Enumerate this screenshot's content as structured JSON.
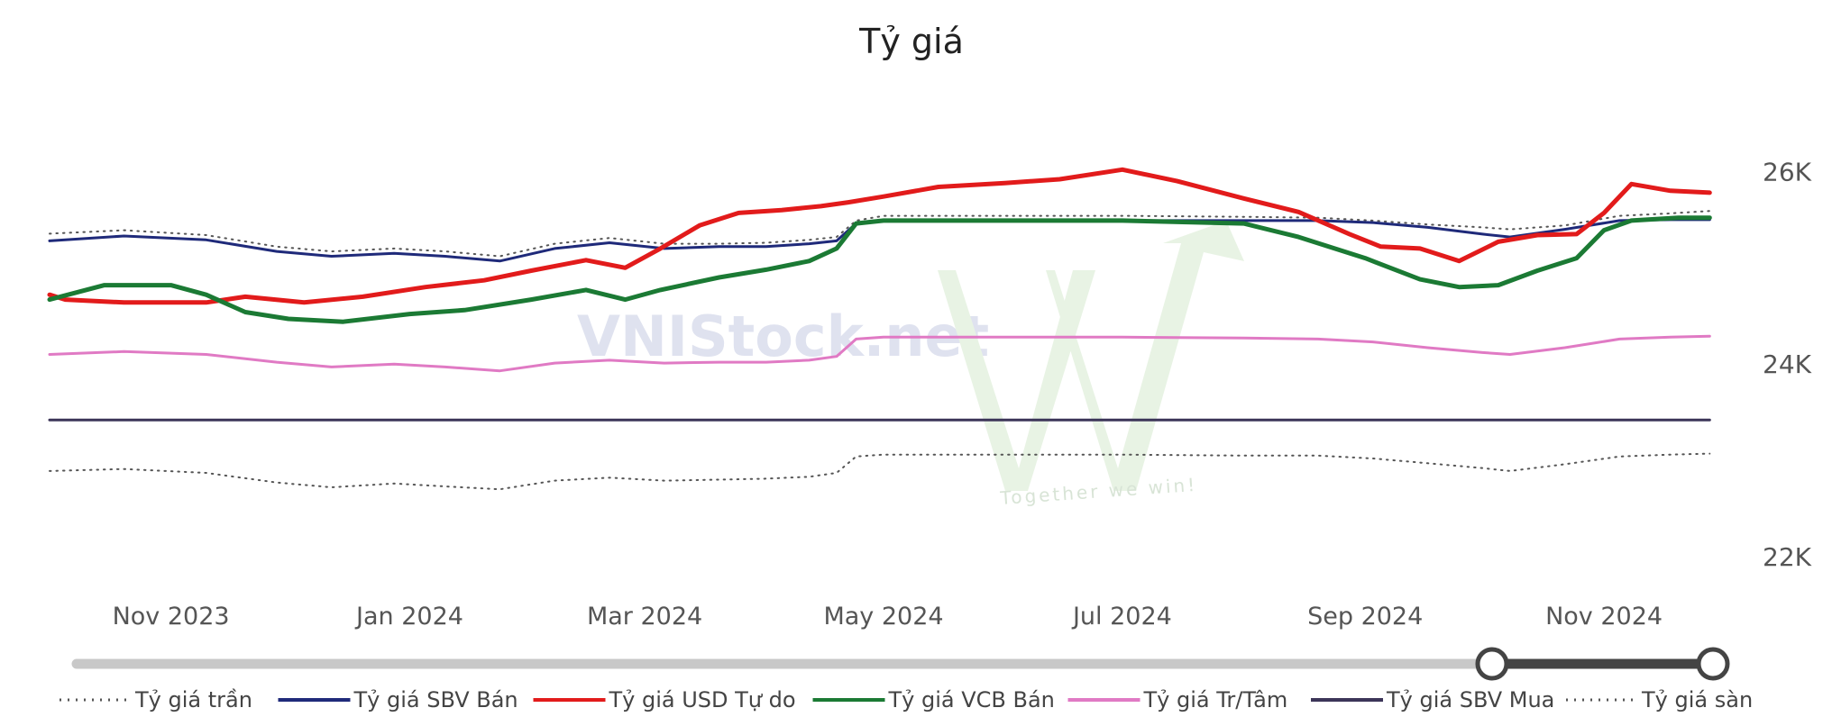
{
  "chart_data": {
    "type": "line",
    "title": "Tỷ giá",
    "xlabel": "",
    "ylabel": "",
    "x_ticks": [
      "Nov 2023",
      "Jan 2024",
      "Mar 2024",
      "May 2024",
      "Jul 2024",
      "Sep 2024",
      "Nov 2024"
    ],
    "y_ticks": [
      "22K",
      "24K",
      "26K"
    ],
    "ylim": [
      21400,
      27200
    ],
    "x_range": [
      "2023-10-01",
      "2024-11-30"
    ],
    "grid": false,
    "legend_position": "bottom",
    "watermark": "VNIStock.net · Together we win!",
    "range_slider": {
      "start": 0.865,
      "end": 1.0
    },
    "series": [
      {
        "name": "Tỷ giá trần",
        "style": "dotted",
        "color": "#555555",
        "width": 2,
        "points": [
          [
            "2023-10-01",
            25335
          ],
          [
            "2023-10-20",
            25370
          ],
          [
            "2023-11-10",
            25320
          ],
          [
            "2023-11-28",
            25200
          ],
          [
            "2023-12-12",
            25150
          ],
          [
            "2023-12-28",
            25180
          ],
          [
            "2024-01-10",
            25150
          ],
          [
            "2024-01-24",
            25100
          ],
          [
            "2024-02-07",
            25230
          ],
          [
            "2024-02-21",
            25290
          ],
          [
            "2024-03-06",
            25230
          ],
          [
            "2024-03-20",
            25230
          ],
          [
            "2024-04-01",
            25240
          ],
          [
            "2024-04-12",
            25270
          ],
          [
            "2024-04-19",
            25300
          ],
          [
            "2024-04-24",
            25470
          ],
          [
            "2024-05-01",
            25520
          ],
          [
            "2024-06-01",
            25520
          ],
          [
            "2024-07-01",
            25520
          ],
          [
            "2024-08-01",
            25510
          ],
          [
            "2024-08-20",
            25500
          ],
          [
            "2024-09-03",
            25470
          ],
          [
            "2024-09-17",
            25430
          ],
          [
            "2024-10-01",
            25400
          ],
          [
            "2024-10-08",
            25380
          ],
          [
            "2024-10-22",
            25420
          ],
          [
            "2024-11-05",
            25520
          ],
          [
            "2024-11-18",
            25545
          ],
          [
            "2024-11-28",
            25570
          ]
        ]
      },
      {
        "name": "Tỷ giá SBV Bán",
        "style": "solid",
        "color": "#1f2a7a",
        "width": 3,
        "points": [
          [
            "2023-10-01",
            25260
          ],
          [
            "2023-10-20",
            25310
          ],
          [
            "2023-11-10",
            25270
          ],
          [
            "2023-11-28",
            25150
          ],
          [
            "2023-12-12",
            25100
          ],
          [
            "2023-12-28",
            25130
          ],
          [
            "2024-01-10",
            25100
          ],
          [
            "2024-01-24",
            25050
          ],
          [
            "2024-02-07",
            25180
          ],
          [
            "2024-02-21",
            25240
          ],
          [
            "2024-03-06",
            25180
          ],
          [
            "2024-03-20",
            25200
          ],
          [
            "2024-04-01",
            25200
          ],
          [
            "2024-04-12",
            25230
          ],
          [
            "2024-04-19",
            25260
          ],
          [
            "2024-04-24",
            25440
          ],
          [
            "2024-05-01",
            25470
          ],
          [
            "2024-06-01",
            25470
          ],
          [
            "2024-07-01",
            25470
          ],
          [
            "2024-08-01",
            25470
          ],
          [
            "2024-08-20",
            25470
          ],
          [
            "2024-09-03",
            25450
          ],
          [
            "2024-09-17",
            25400
          ],
          [
            "2024-10-01",
            25330
          ],
          [
            "2024-10-08",
            25300
          ],
          [
            "2024-10-22",
            25380
          ],
          [
            "2024-11-05",
            25470
          ],
          [
            "2024-11-18",
            25480
          ],
          [
            "2024-11-28",
            25480
          ]
        ]
      },
      {
        "name": "Tỷ giá USD Tự do",
        "style": "solid",
        "color": "#e21b1b",
        "width": 5,
        "points": [
          [
            "2023-10-01",
            24700
          ],
          [
            "2023-10-05",
            24650
          ],
          [
            "2023-10-20",
            24620
          ],
          [
            "2023-11-10",
            24620
          ],
          [
            "2023-11-20",
            24680
          ],
          [
            "2023-12-05",
            24620
          ],
          [
            "2023-12-20",
            24680
          ],
          [
            "2024-01-05",
            24780
          ],
          [
            "2024-01-20",
            24850
          ],
          [
            "2024-02-01",
            24950
          ],
          [
            "2024-02-15",
            25060
          ],
          [
            "2024-02-25",
            24980
          ],
          [
            "2024-03-05",
            25180
          ],
          [
            "2024-03-15",
            25420
          ],
          [
            "2024-03-25",
            25550
          ],
          [
            "2024-04-05",
            25580
          ],
          [
            "2024-04-15",
            25620
          ],
          [
            "2024-04-22",
            25660
          ],
          [
            "2024-05-01",
            25720
          ],
          [
            "2024-05-15",
            25820
          ],
          [
            "2024-06-01",
            25860
          ],
          [
            "2024-06-15",
            25900
          ],
          [
            "2024-07-01",
            26000
          ],
          [
            "2024-07-15",
            25880
          ],
          [
            "2024-08-01",
            25700
          ],
          [
            "2024-08-15",
            25560
          ],
          [
            "2024-08-28",
            25330
          ],
          [
            "2024-09-05",
            25200
          ],
          [
            "2024-09-15",
            25180
          ],
          [
            "2024-09-25",
            25050
          ],
          [
            "2024-10-05",
            25250
          ],
          [
            "2024-10-15",
            25320
          ],
          [
            "2024-10-25",
            25330
          ],
          [
            "2024-11-01",
            25550
          ],
          [
            "2024-11-08",
            25850
          ],
          [
            "2024-11-18",
            25780
          ],
          [
            "2024-11-28",
            25760
          ]
        ]
      },
      {
        "name": "Tỷ giá VCB Bán",
        "style": "solid",
        "color": "#1b7a34",
        "width": 5,
        "points": [
          [
            "2023-10-01",
            24650
          ],
          [
            "2023-10-15",
            24800
          ],
          [
            "2023-11-01",
            24800
          ],
          [
            "2023-11-10",
            24700
          ],
          [
            "2023-11-20",
            24520
          ],
          [
            "2023-12-01",
            24450
          ],
          [
            "2023-12-15",
            24420
          ],
          [
            "2024-01-01",
            24500
          ],
          [
            "2024-01-15",
            24540
          ],
          [
            "2024-02-01",
            24650
          ],
          [
            "2024-02-15",
            24750
          ],
          [
            "2024-02-25",
            24650
          ],
          [
            "2024-03-05",
            24750
          ],
          [
            "2024-03-20",
            24880
          ],
          [
            "2024-04-01",
            24960
          ],
          [
            "2024-04-12",
            25050
          ],
          [
            "2024-04-19",
            25180
          ],
          [
            "2024-04-24",
            25440
          ],
          [
            "2024-05-01",
            25470
          ],
          [
            "2024-06-01",
            25470
          ],
          [
            "2024-07-01",
            25470
          ],
          [
            "2024-08-01",
            25440
          ],
          [
            "2024-08-15",
            25300
          ],
          [
            "2024-09-01",
            25080
          ],
          [
            "2024-09-15",
            24860
          ],
          [
            "2024-09-25",
            24780
          ],
          [
            "2024-10-05",
            24800
          ],
          [
            "2024-10-15",
            24950
          ],
          [
            "2024-10-25",
            25080
          ],
          [
            "2024-11-01",
            25370
          ],
          [
            "2024-11-08",
            25470
          ],
          [
            "2024-11-20",
            25500
          ],
          [
            "2024-11-28",
            25500
          ]
        ]
      },
      {
        "name": "Tỷ giá Tr/Tâm",
        "style": "solid",
        "color": "#e07ac4",
        "width": 3,
        "points": [
          [
            "2023-10-01",
            24080
          ],
          [
            "2023-10-20",
            24110
          ],
          [
            "2023-11-10",
            24080
          ],
          [
            "2023-11-28",
            24000
          ],
          [
            "2023-12-12",
            23950
          ],
          [
            "2023-12-28",
            23980
          ],
          [
            "2024-01-10",
            23950
          ],
          [
            "2024-01-24",
            23910
          ],
          [
            "2024-02-07",
            23990
          ],
          [
            "2024-02-21",
            24020
          ],
          [
            "2024-03-06",
            23990
          ],
          [
            "2024-03-20",
            24000
          ],
          [
            "2024-04-01",
            24000
          ],
          [
            "2024-04-12",
            24020
          ],
          [
            "2024-04-19",
            24060
          ],
          [
            "2024-04-24",
            24240
          ],
          [
            "2024-05-01",
            24260
          ],
          [
            "2024-06-01",
            24260
          ],
          [
            "2024-07-01",
            24260
          ],
          [
            "2024-08-01",
            24250
          ],
          [
            "2024-08-20",
            24240
          ],
          [
            "2024-09-03",
            24210
          ],
          [
            "2024-09-17",
            24150
          ],
          [
            "2024-10-01",
            24100
          ],
          [
            "2024-10-08",
            24080
          ],
          [
            "2024-10-22",
            24150
          ],
          [
            "2024-11-05",
            24240
          ],
          [
            "2024-11-18",
            24260
          ],
          [
            "2024-11-28",
            24270
          ]
        ]
      },
      {
        "name": "Tỷ giá SBV Mua",
        "style": "solid",
        "color": "#3c3558",
        "width": 3,
        "points": [
          [
            "2023-10-01",
            23400
          ],
          [
            "2024-11-28",
            23400
          ]
        ]
      },
      {
        "name": "Tỷ giá sàn",
        "style": "dotted",
        "color": "#555555",
        "width": 2,
        "points": [
          [
            "2023-10-01",
            22870
          ],
          [
            "2023-10-20",
            22890
          ],
          [
            "2023-11-10",
            22850
          ],
          [
            "2023-11-28",
            22750
          ],
          [
            "2023-12-12",
            22700
          ],
          [
            "2023-12-28",
            22740
          ],
          [
            "2024-01-10",
            22710
          ],
          [
            "2024-01-24",
            22680
          ],
          [
            "2024-02-07",
            22770
          ],
          [
            "2024-02-21",
            22800
          ],
          [
            "2024-03-06",
            22770
          ],
          [
            "2024-03-20",
            22780
          ],
          [
            "2024-04-01",
            22790
          ],
          [
            "2024-04-12",
            22810
          ],
          [
            "2024-04-19",
            22850
          ],
          [
            "2024-04-24",
            23020
          ],
          [
            "2024-05-01",
            23040
          ],
          [
            "2024-06-01",
            23040
          ],
          [
            "2024-07-01",
            23040
          ],
          [
            "2024-08-01",
            23030
          ],
          [
            "2024-08-20",
            23030
          ],
          [
            "2024-09-03",
            23000
          ],
          [
            "2024-09-17",
            22950
          ],
          [
            "2024-10-01",
            22900
          ],
          [
            "2024-10-08",
            22870
          ],
          [
            "2024-10-22",
            22940
          ],
          [
            "2024-11-05",
            23020
          ],
          [
            "2024-11-18",
            23040
          ],
          [
            "2024-11-28",
            23050
          ]
        ]
      }
    ]
  }
}
